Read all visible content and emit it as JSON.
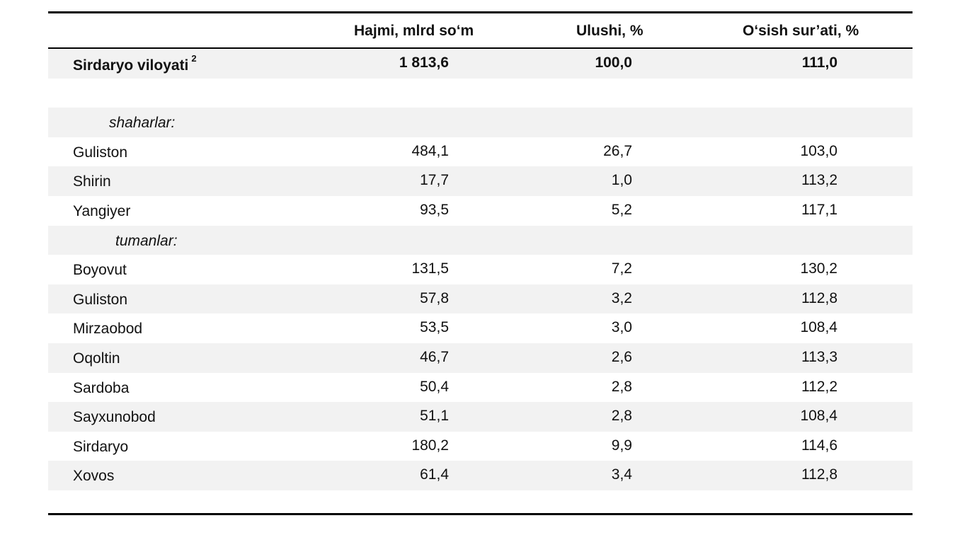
{
  "table": {
    "headers": [
      "",
      "Hajmi, mlrd so‘m",
      "Ulushi, %",
      "O‘sish sur’ati, %"
    ],
    "total": {
      "name": "Sirdaryo viloyati",
      "sup": "2",
      "values": [
        "1 813,6",
        "100,0",
        "111,0"
      ]
    },
    "group_cities": "shaharlar:",
    "cities": [
      {
        "name": "Guliston",
        "values": [
          "484,1",
          "26,7",
          "103,0"
        ]
      },
      {
        "name": "Shirin",
        "values": [
          "17,7",
          "1,0",
          "113,2"
        ]
      },
      {
        "name": "Yangiyer",
        "values": [
          "93,5",
          "5,2",
          "117,1"
        ]
      }
    ],
    "group_districts": "tumanlar:",
    "districts": [
      {
        "name": "Boyovut",
        "values": [
          "131,5",
          "7,2",
          "130,2"
        ]
      },
      {
        "name": "Guliston",
        "values": [
          "57,8",
          "3,2",
          "112,8"
        ]
      },
      {
        "name": "Mirzaobod",
        "values": [
          "53,5",
          "3,0",
          "108,4"
        ]
      },
      {
        "name": "Oqoltin",
        "values": [
          "46,7",
          "2,6",
          "113,3"
        ]
      },
      {
        "name": "Sardoba",
        "values": [
          "50,4",
          "2,8",
          "112,2"
        ]
      },
      {
        "name": "Sayxunobod",
        "values": [
          "51,1",
          "2,8",
          "108,4"
        ]
      },
      {
        "name": "Sirdaryo",
        "values": [
          "180,2",
          "9,9",
          "114,6"
        ]
      },
      {
        "name": "Xovos",
        "values": [
          "61,4",
          "3,4",
          "112,8"
        ]
      }
    ]
  }
}
